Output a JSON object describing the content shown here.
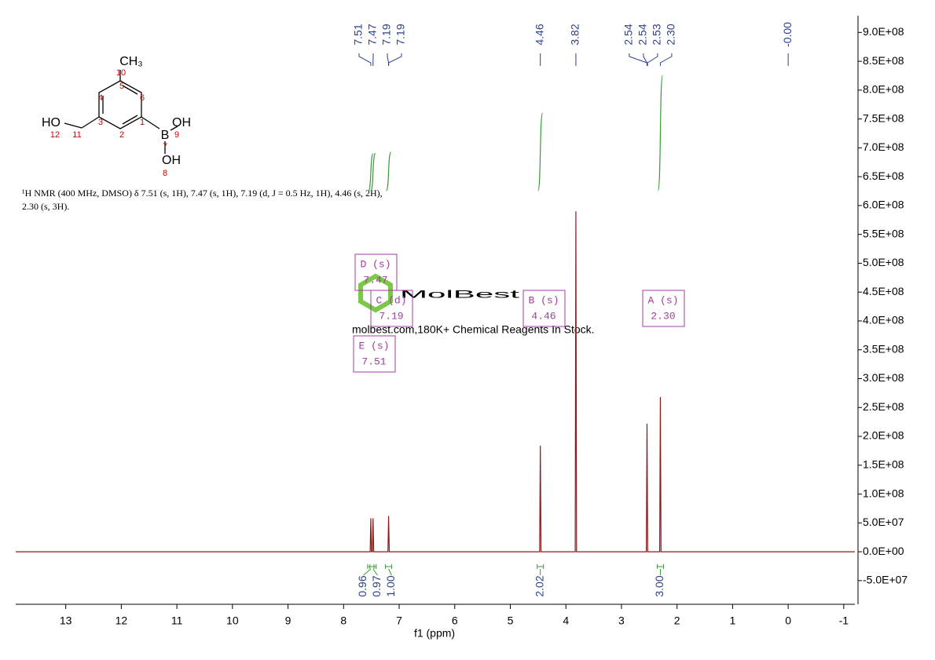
{
  "chart_data": {
    "type": "line",
    "xlabel": "f1 (ppm)",
    "xlim": [
      13.9,
      -1.2
    ],
    "xticks": [
      13,
      12,
      11,
      10,
      9,
      8,
      7,
      6,
      5,
      4,
      3,
      2,
      1,
      0,
      -1
    ],
    "ylim": [
      -91000000,
      929000000
    ],
    "yticks": [
      {
        "value": -50000000,
        "label": "-5.0E+07"
      },
      {
        "value": 0,
        "label": "0.0E+00"
      },
      {
        "value": 50000000,
        "label": "5.0E+07"
      },
      {
        "value": 100000000,
        "label": "1.0E+08"
      },
      {
        "value": 150000000,
        "label": "1.5E+08"
      },
      {
        "value": 200000000,
        "label": "2.0E+08"
      },
      {
        "value": 250000000,
        "label": "2.5E+08"
      },
      {
        "value": 300000000,
        "label": "3.0E+08"
      },
      {
        "value": 350000000,
        "label": "3.5E+08"
      },
      {
        "value": 400000000,
        "label": "4.0E+08"
      },
      {
        "value": 450000000,
        "label": "4.5E+08"
      },
      {
        "value": 500000000,
        "label": "5.0E+08"
      },
      {
        "value": 550000000,
        "label": "5.5E+08"
      },
      {
        "value": 600000000,
        "label": "6.0E+08"
      },
      {
        "value": 650000000,
        "label": "6.5E+08"
      },
      {
        "value": 700000000,
        "label": "7.0E+08"
      },
      {
        "value": 750000000,
        "label": "7.5E+08"
      },
      {
        "value": 800000000,
        "label": "8.0E+08"
      },
      {
        "value": 850000000,
        "label": "8.5E+08"
      },
      {
        "value": 900000000,
        "label": "9.0E+08"
      }
    ],
    "series": [
      {
        "color": "#8b1a1a",
        "x": [
          13.9,
          7.522,
          7.51,
          7.498,
          7.482,
          7.47,
          7.458,
          7.202,
          7.19,
          7.178,
          4.472,
          4.46,
          4.448,
          3.832,
          3.82,
          3.808,
          2.552,
          2.54,
          2.528,
          2.312,
          2.3,
          2.288,
          -1.2
        ],
        "values": [
          0,
          0,
          58000000,
          0,
          0,
          58000000,
          0,
          0,
          62000000,
          0,
          0,
          184000000,
          0,
          0,
          590000000,
          0,
          0,
          222000000,
          0,
          0,
          268000000,
          0,
          0
        ]
      }
    ],
    "peak_labels": [
      7.51,
      7.47,
      7.19,
      7.19,
      4.46,
      3.82,
      2.54,
      2.54,
      2.53,
      {
        "value": 2.3,
        "label": "2.30"
      },
      {
        "value": 0,
        "label": "-0.00"
      }
    ],
    "integrals": {
      "x": [
        7.51,
        7.47,
        7.19,
        4.46,
        2.3
      ],
      "values": [
        0.96,
        0.97,
        1,
        2.02,
        3
      ],
      "value_labels": [
        "0.96",
        "0.97",
        "1.00",
        "2.02",
        "3.00"
      ]
    },
    "multiplets": [
      {
        "label": "D (s)",
        "shift": "7.47"
      },
      {
        "label": "C (d)",
        "shift": "7.19"
      },
      {
        "label": "E (s)",
        "shift": "7.51"
      },
      {
        "label": "B (s)",
        "shift": "4.46"
      },
      {
        "label": "A (s)",
        "shift": "2.30"
      }
    ],
    "description": [
      "¹H NMR (400 MHz, DMSO) δ 7.51 (s, 1H), 7.47 (s, 1H), 7.19 (d, J = 0.5 Hz, 1H), 4.46 (s, 2H),",
      "2.30 (s, 3H)."
    ]
  },
  "structure": {
    "labels": [
      "CH₃",
      "10",
      "5",
      "4",
      "6",
      "3",
      "1",
      "2",
      "HO",
      "12",
      "11",
      "B",
      "OH",
      "9",
      "7",
      "OH",
      "8"
    ]
  },
  "watermark": {
    "brand": "MolBest",
    "tagline": "molbest.com,180K+ Chemical Reagents In Stock."
  }
}
